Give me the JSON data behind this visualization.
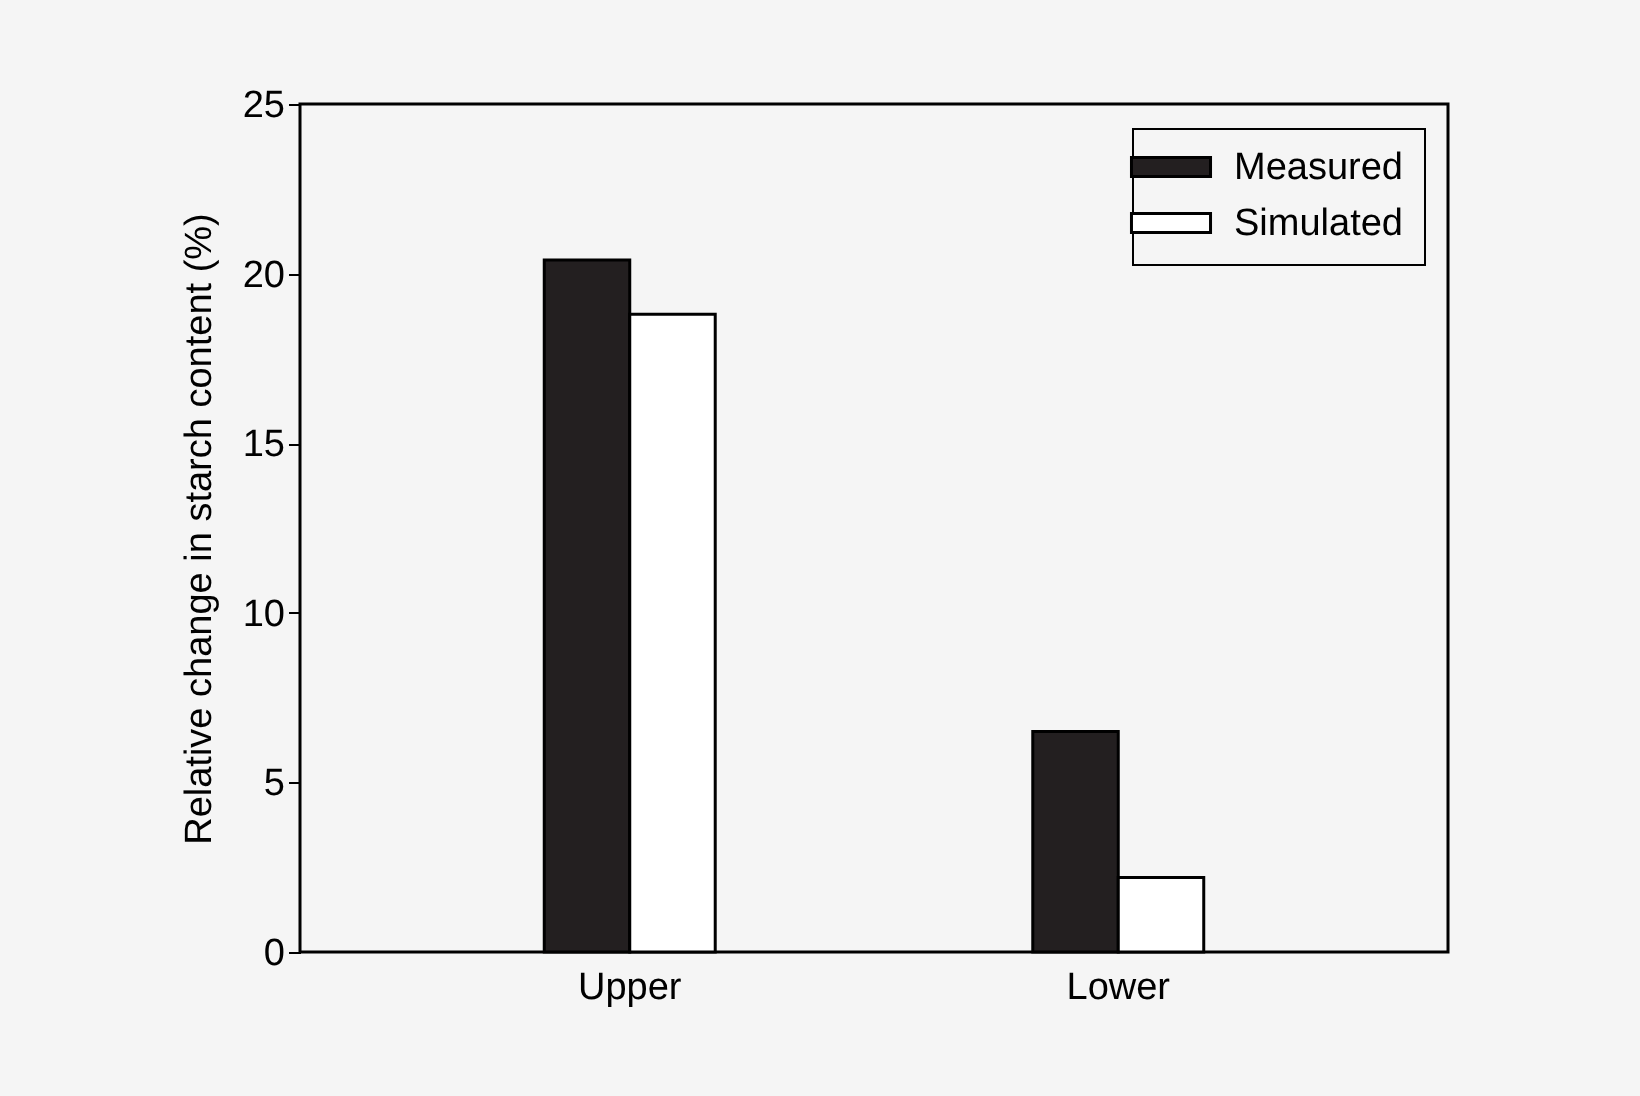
{
  "chart_data": {
    "type": "bar",
    "ylabel": "Relative change in starch content (%)",
    "categories": [
      "Upper",
      "Lower"
    ],
    "series": [
      {
        "name": "Measured",
        "color": "#231f20",
        "values": [
          20.4,
          6.5
        ]
      },
      {
        "name": "Simulated",
        "color": "#ffffff",
        "values": [
          18.8,
          2.2
        ]
      }
    ],
    "ylim": [
      0,
      25
    ],
    "yticks": [
      0,
      5,
      10,
      15,
      20,
      25
    ],
    "grid": false,
    "legend": "top right"
  }
}
